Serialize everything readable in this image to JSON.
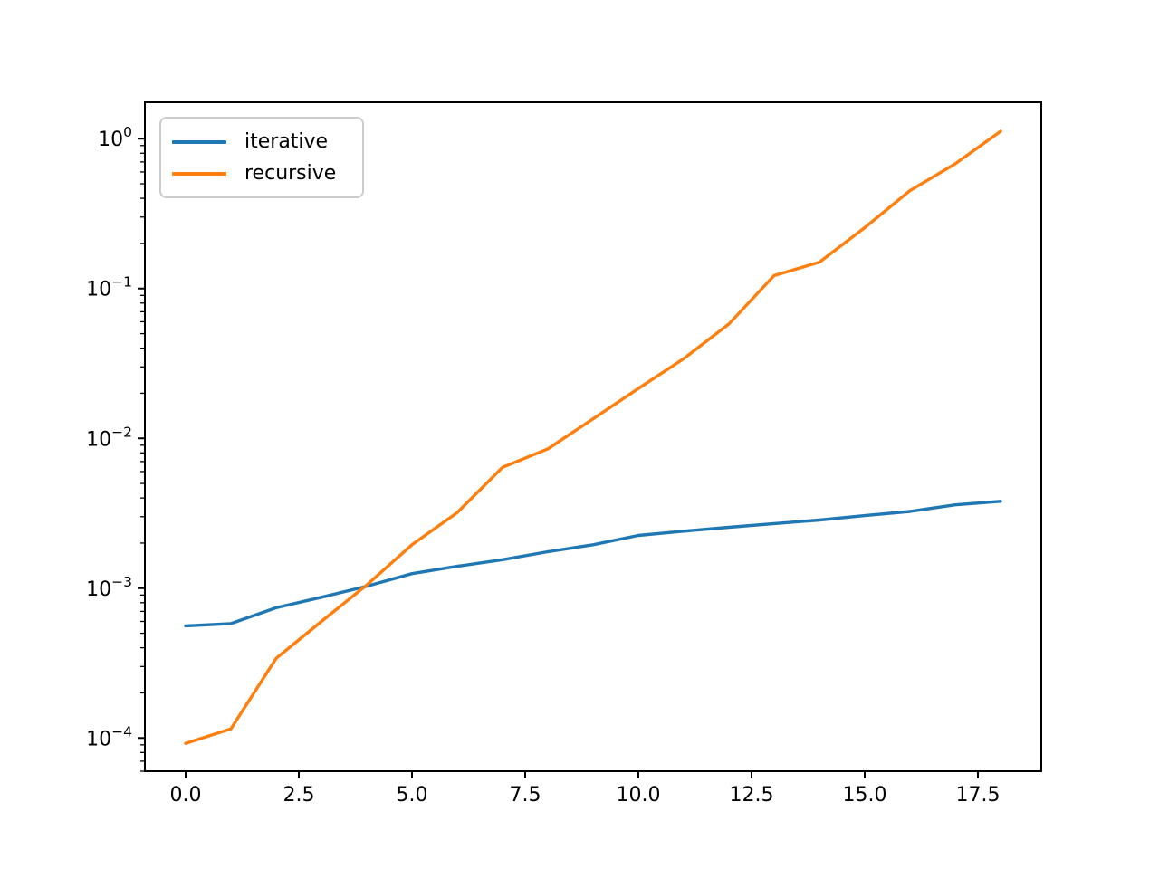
{
  "figure": {
    "background": "#ffffff",
    "frame_color": "#000000",
    "tick_color": "#000000",
    "legend_border_color": "#cccccc"
  },
  "chart_data": {
    "type": "line",
    "title": "",
    "xlabel": "",
    "ylabel": "",
    "x_scale": "linear",
    "y_scale": "log",
    "grid": false,
    "xlim": [
      -0.9,
      18.9
    ],
    "ylim": [
      6e-05,
      1.75
    ],
    "x_ticks": [
      0.0,
      2.5,
      5.0,
      7.5,
      10.0,
      12.5,
      15.0,
      17.5
    ],
    "x_tick_labels": [
      "0.0",
      "2.5",
      "5.0",
      "7.5",
      "10.0",
      "12.5",
      "15.0",
      "17.5"
    ],
    "y_tick_exponents": [
      0,
      -1,
      -2,
      -3,
      -4
    ],
    "y_tick_base": "10",
    "legend": {
      "position": "upper left",
      "entries": [
        "iterative",
        "recursive"
      ]
    },
    "x": [
      0,
      1,
      2,
      3,
      4,
      5,
      6,
      7,
      8,
      9,
      10,
      11,
      12,
      13,
      14,
      15,
      16,
      17,
      18
    ],
    "series": [
      {
        "name": "iterative",
        "color": "#1f77b4",
        "values": [
          0.00056,
          0.00058,
          0.00074,
          0.00087,
          0.00103,
          0.00125,
          0.0014,
          0.00155,
          0.00175,
          0.00195,
          0.00225,
          0.0024,
          0.00255,
          0.0027,
          0.00285,
          0.00305,
          0.00325,
          0.0036,
          0.0038
        ]
      },
      {
        "name": "recursive",
        "color": "#ff7f0e",
        "values": [
          9.2e-05,
          0.000115,
          0.00034,
          0.0006,
          0.00105,
          0.00195,
          0.0032,
          0.0064,
          0.0085,
          0.0135,
          0.0215,
          0.034,
          0.058,
          0.122,
          0.15,
          0.255,
          0.45,
          0.68,
          1.12
        ]
      }
    ]
  }
}
